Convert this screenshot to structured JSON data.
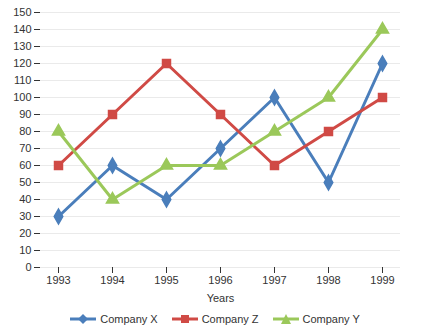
{
  "chart_data": {
    "type": "line",
    "x_label": "Years",
    "categories": [
      "1993",
      "1994",
      "1995",
      "1996",
      "1997",
      "1998",
      "1999"
    ],
    "series": [
      {
        "name": "Company X",
        "color": "#4a7ebb",
        "marker": "diamond",
        "values": [
          30,
          60,
          40,
          70,
          100,
          50,
          120
        ]
      },
      {
        "name": "Company Z",
        "color": "#d04a45",
        "marker": "square",
        "values": [
          60,
          90,
          120,
          90,
          60,
          80,
          100
        ]
      },
      {
        "name": "Company Y",
        "color": "#9bc85a",
        "marker": "triangle",
        "values": [
          80,
          40,
          60,
          60,
          80,
          100,
          140
        ]
      }
    ],
    "ylim": [
      0,
      150
    ],
    "yticks": [
      0,
      10,
      20,
      30,
      40,
      50,
      60,
      70,
      80,
      90,
      100,
      110,
      120,
      130,
      140,
      150
    ],
    "grid": true,
    "legend": "bottom"
  }
}
